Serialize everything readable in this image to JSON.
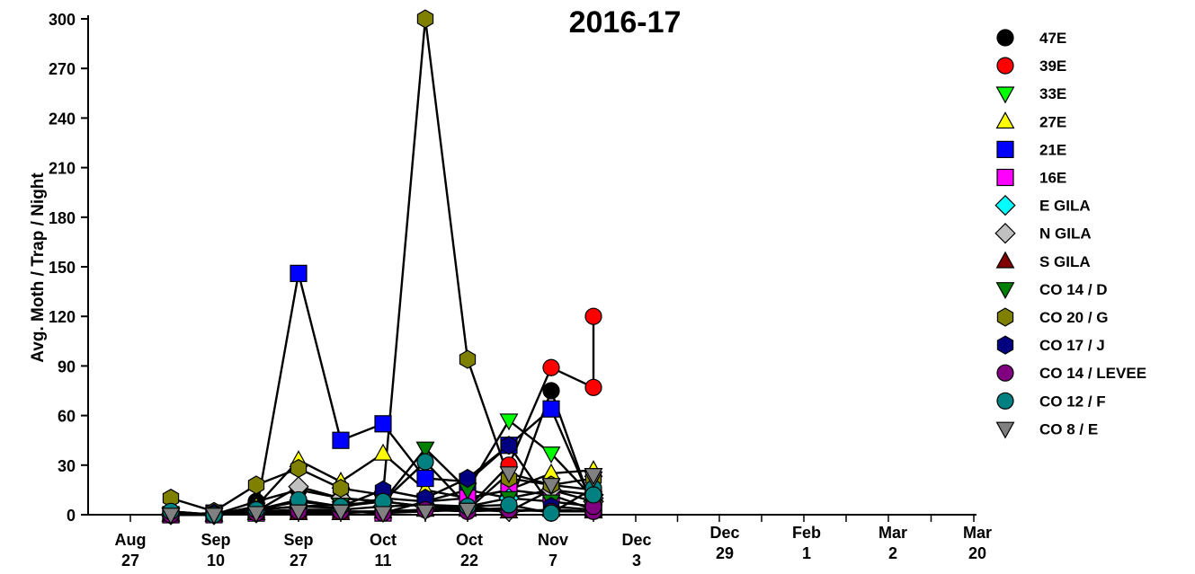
{
  "chart_data": {
    "type": "line",
    "title": "2016-17",
    "xlabel": "",
    "ylabel": "Avg. Moth / Trap / Night",
    "ylim": [
      0,
      300
    ],
    "yticks": [
      "0",
      "30",
      "60",
      "90",
      "120",
      "150",
      "180",
      "210",
      "240",
      "270",
      "300"
    ],
    "xticks": [
      {
        "month": "Aug",
        "day": "27"
      },
      {
        "month": "Sep",
        "day": "10"
      },
      {
        "month": "Sep",
        "day": "27"
      },
      {
        "month": "Oct",
        "day": "11"
      },
      {
        "month": "Oct",
        "day": "22"
      },
      {
        "month": "Nov",
        "day": "7"
      },
      {
        "month": "Dec",
        "day": "3"
      },
      {
        "month": "Dec",
        "day": "29"
      },
      {
        "month": "Feb",
        "day": "1"
      },
      {
        "month": "Mar",
        "day": "2"
      },
      {
        "month": "Mar",
        "day": "20"
      }
    ],
    "x_dates": [
      "Aug 31",
      "Sep 7",
      "Sep 14",
      "Sep 21",
      "Sep 28",
      "Oct 5",
      "Oct 12",
      "Oct 19",
      "Oct 26",
      "Nov 2",
      "Nov 9",
      "Nov 16"
    ],
    "grid": false,
    "legend_position": "right",
    "series": [
      {
        "name": "47E",
        "marker": "circle",
        "color": "#000000",
        "values": [
          2,
          0,
          8,
          15,
          10,
          8,
          5,
          3,
          4,
          75,
          3,
          8
        ]
      },
      {
        "name": "39E",
        "marker": "circle",
        "color": "#ff0000",
        "values": [
          1,
          0,
          2,
          3,
          2,
          2,
          3,
          4,
          30,
          89,
          77,
          120
        ]
      },
      {
        "name": "33E",
        "marker": "triangle-down",
        "color": "#00ff00",
        "values": [
          0,
          0,
          3,
          5,
          4,
          10,
          8,
          15,
          57,
          37,
          10,
          8
        ]
      },
      {
        "name": "27E",
        "marker": "triangle-up",
        "color": "#ffff00",
        "values": [
          0,
          0,
          5,
          33,
          20,
          37,
          15,
          10,
          15,
          25,
          27,
          10
        ]
      },
      {
        "name": "21E",
        "marker": "square",
        "color": "#0000ff",
        "values": [
          0,
          1,
          2,
          146,
          45,
          55,
          22,
          20,
          42,
          64,
          5,
          5
        ]
      },
      {
        "name": "16E",
        "marker": "square",
        "color": "#ff00ff",
        "values": [
          0,
          0,
          1,
          2,
          2,
          1,
          8,
          10,
          15,
          12,
          3,
          5
        ]
      },
      {
        "name": "E GILA",
        "marker": "diamond",
        "color": "#00ffff",
        "values": [
          0,
          0,
          1,
          3,
          3,
          5,
          6,
          5,
          10,
          15,
          12,
          10
        ]
      },
      {
        "name": "N GILA",
        "marker": "diamond",
        "color": "#c0c0c0",
        "values": [
          0,
          0,
          2,
          17,
          10,
          8,
          5,
          5,
          2,
          15,
          8,
          8
        ]
      },
      {
        "name": "S GILA",
        "marker": "triangle-up",
        "color": "#800000",
        "values": [
          0,
          0,
          1,
          1,
          1,
          2,
          3,
          3,
          2,
          3,
          2,
          3
        ]
      },
      {
        "name": "CO 14 / D",
        "marker": "triangle-down",
        "color": "#008000",
        "values": [
          0,
          0,
          3,
          5,
          6,
          8,
          40,
          15,
          10,
          8,
          5,
          8
        ]
      },
      {
        "name": "CO 20 / G",
        "marker": "hexagon",
        "color": "#808000",
        "values": [
          10,
          2,
          18,
          28,
          16,
          12,
          300,
          94,
          22,
          18,
          15,
          22
        ]
      },
      {
        "name": "CO 17 / J",
        "marker": "hexagon",
        "color": "#000080",
        "values": [
          0,
          1,
          3,
          8,
          5,
          15,
          10,
          22,
          42,
          5,
          3,
          12
        ]
      },
      {
        "name": "CO 14 / LEVEE",
        "marker": "circle",
        "color": "#800080",
        "values": [
          0,
          0,
          1,
          2,
          2,
          1,
          3,
          2,
          3,
          2,
          2,
          5
        ]
      },
      {
        "name": "CO 12 / F",
        "marker": "circle",
        "color": "#008080",
        "values": [
          2,
          0,
          3,
          9,
          5,
          8,
          32,
          5,
          6,
          1,
          16,
          12
        ]
      },
      {
        "name": "CO 8 / E",
        "marker": "triangle-down",
        "color": "#808080",
        "values": [
          0,
          0,
          1,
          2,
          2,
          1,
          2,
          3,
          25,
          18,
          22,
          24
        ]
      }
    ]
  }
}
